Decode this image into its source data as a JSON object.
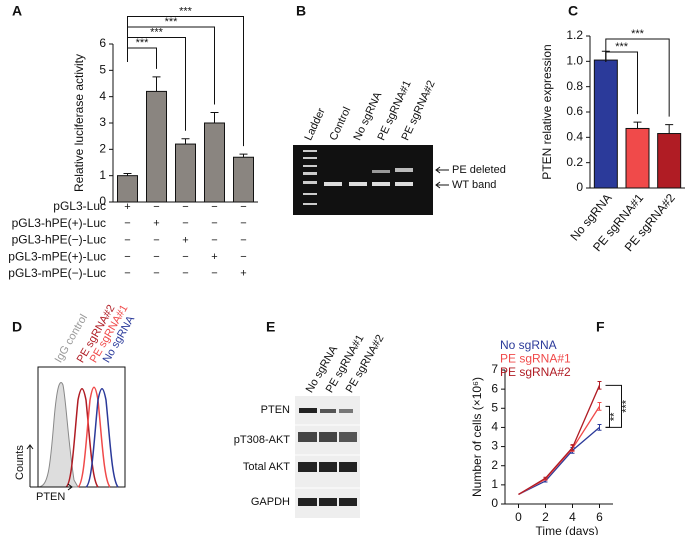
{
  "panel_labels": [
    "A",
    "B",
    "C",
    "D",
    "E",
    "F"
  ],
  "chart_data": [
    {
      "type": "bar",
      "ylabel": "Relative luciferase activity",
      "values": [
        1.0,
        4.2,
        2.2,
        3.0,
        1.7
      ],
      "errors": [
        0.08,
        0.55,
        0.2,
        0.4,
        0.12
      ],
      "color": "#8a8580",
      "ylim": [
        0,
        6
      ],
      "yticks": [
        0,
        1,
        2,
        3,
        4,
        5,
        6
      ],
      "annotations": [
        "***",
        "***",
        "***",
        "***"
      ]
    },
    {
      "type": "bar",
      "ylabel": "PTEN relative expression",
      "categories": [
        "No sgRNA",
        "PE sgRNA#1",
        "PE sgRNA#2"
      ],
      "values": [
        1.01,
        0.47,
        0.43
      ],
      "errors": [
        0.07,
        0.05,
        0.07
      ],
      "colors": [
        "#2b3a9a",
        "#f04a4a",
        "#b01c24"
      ],
      "ylim": [
        0,
        1.2
      ],
      "yticks": [
        0,
        0.2,
        0.4,
        0.6,
        0.8,
        {
          "value": 1,
          "label": "1.0"
        },
        1.2
      ],
      "annotations": [
        "***",
        "***"
      ]
    },
    {
      "type": "line",
      "xlabel": "Time (days)",
      "ylabel": "Number of cells (×10⁶)",
      "x": [
        0,
        2,
        4,
        6
      ],
      "xlim": [
        -1,
        7
      ],
      "xticks": [
        0,
        2,
        4,
        6
      ],
      "ylim": [
        0,
        7
      ],
      "yticks": [
        0,
        1,
        2,
        3,
        4,
        5,
        6,
        7
      ],
      "series": [
        {
          "name": "No sgRNA",
          "color": "#2b3a9a",
          "values": [
            0.5,
            1.2,
            2.8,
            4.0
          ],
          "errors": [
            0,
            0.05,
            0.15,
            0.15
          ]
        },
        {
          "name": "PE sgRNA#1",
          "color": "#f04a4a",
          "values": [
            0.5,
            1.3,
            2.9,
            5.1
          ],
          "errors": [
            0,
            0.05,
            0.15,
            0.2
          ]
        },
        {
          "name": "PE sgRNA#2",
          "color": "#b01c24",
          "values": [
            0.5,
            1.35,
            2.95,
            6.2
          ],
          "errors": [
            0,
            0.05,
            0.15,
            0.2
          ]
        }
      ],
      "annotations": [
        "**",
        "***"
      ]
    }
  ],
  "table": {
    "rows": [
      {
        "label": "pGL3-Luc",
        "cells": [
          "+",
          "−",
          "−",
          "−",
          "−"
        ]
      },
      {
        "label": "pGL3-hPE(+)-Luc",
        "cells": [
          "−",
          "+",
          "−",
          "−",
          "−"
        ]
      },
      {
        "label": "pGL3-hPE(−)-Luc",
        "cells": [
          "−",
          "−",
          "+",
          "−",
          "−"
        ]
      },
      {
        "label": "pGL3-mPE(+)-Luc",
        "cells": [
          "−",
          "−",
          "−",
          "+",
          "−"
        ]
      },
      {
        "label": "pGL3-mPE(−)-Luc",
        "cells": [
          "−",
          "−",
          "−",
          "−",
          "+"
        ]
      }
    ]
  },
  "gel": {
    "lanes": [
      "Ladder",
      "Control",
      "No sgRNA",
      "PE sgRNA#1",
      "PE sgRNA#2"
    ],
    "bands": [
      "PE deleted",
      "WT band"
    ]
  },
  "flow": {
    "labels": [
      "IgG control",
      "PE sgRNA#2",
      "PE sgRNA#1",
      "No sgRNA"
    ],
    "ylabel": "Counts",
    "xlabel": "PTEN"
  },
  "blot": {
    "lanes": [
      "No sgRNA",
      "PE sgRNA#1",
      "PE sgRNA#2"
    ],
    "rows": [
      "PTEN",
      "pT308-AKT",
      "Total AKT",
      "GAPDH"
    ]
  }
}
